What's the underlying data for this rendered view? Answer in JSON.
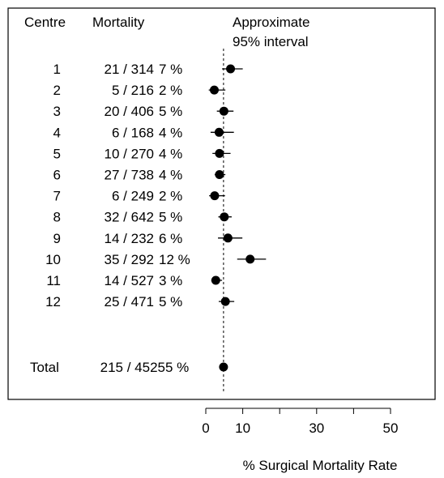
{
  "chart_data": {
    "type": "forest",
    "headers": {
      "centre": "Centre",
      "mortality": "Mortality",
      "interval_line1": "Approximate",
      "interval_line2": "95% interval"
    },
    "rows": [
      {
        "centre": "1",
        "deaths_total": "21 / 314",
        "rate_label": "7 %",
        "estimate": 6.7,
        "ci": [
          4.4,
          10.0
        ]
      },
      {
        "centre": "2",
        "deaths_total": "5 / 216",
        "rate_label": "2 %",
        "estimate": 2.3,
        "ci": [
          0.8,
          5.3
        ]
      },
      {
        "centre": "3",
        "deaths_total": "20 / 406",
        "rate_label": "5 %",
        "estimate": 4.9,
        "ci": [
          3.0,
          7.5
        ]
      },
      {
        "centre": "4",
        "deaths_total": "6 / 168",
        "rate_label": "4 %",
        "estimate": 3.6,
        "ci": [
          1.3,
          7.6
        ]
      },
      {
        "centre": "5",
        "deaths_total": "10 / 270",
        "rate_label": "4 %",
        "estimate": 3.7,
        "ci": [
          1.8,
          6.7
        ]
      },
      {
        "centre": "6",
        "deaths_total": "27 / 738",
        "rate_label": "4 %",
        "estimate": 3.7,
        "ci": [
          2.4,
          5.3
        ]
      },
      {
        "centre": "7",
        "deaths_total": "6 / 249",
        "rate_label": "2 %",
        "estimate": 2.4,
        "ci": [
          0.9,
          5.2
        ]
      },
      {
        "centre": "8",
        "deaths_total": "32 / 642",
        "rate_label": "5 %",
        "estimate": 5.0,
        "ci": [
          3.4,
          7.0
        ]
      },
      {
        "centre": "9",
        "deaths_total": "14 / 232",
        "rate_label": "6 %",
        "estimate": 6.0,
        "ci": [
          3.3,
          9.9
        ]
      },
      {
        "centre": "10",
        "deaths_total": "35 / 292",
        "rate_label": "12 %",
        "estimate": 12.0,
        "ci": [
          8.5,
          16.3
        ]
      },
      {
        "centre": "11",
        "deaths_total": "14 / 527",
        "rate_label": "3 %",
        "estimate": 2.7,
        "ci": [
          1.5,
          4.4
        ]
      },
      {
        "centre": "12",
        "deaths_total": "25 / 471",
        "rate_label": "5 %",
        "estimate": 5.3,
        "ci": [
          3.5,
          7.7
        ]
      }
    ],
    "total": {
      "centre": "Total",
      "deaths_total": "215 / 4525",
      "rate_label": "5 %",
      "estimate": 4.8,
      "ci": [
        4.1,
        5.4
      ]
    },
    "reference_line": 4.8,
    "xticks": [
      0,
      10,
      20,
      30,
      40,
      50
    ],
    "xtick_labels": [
      "0",
      "10",
      "",
      "30",
      "",
      "50"
    ],
    "xlim": [
      0,
      50
    ],
    "xlabel": "% Surgical Mortality Rate",
    "grid": false,
    "colors": {
      "point": "#000000",
      "line": "#000000",
      "frame": "#000000"
    }
  }
}
